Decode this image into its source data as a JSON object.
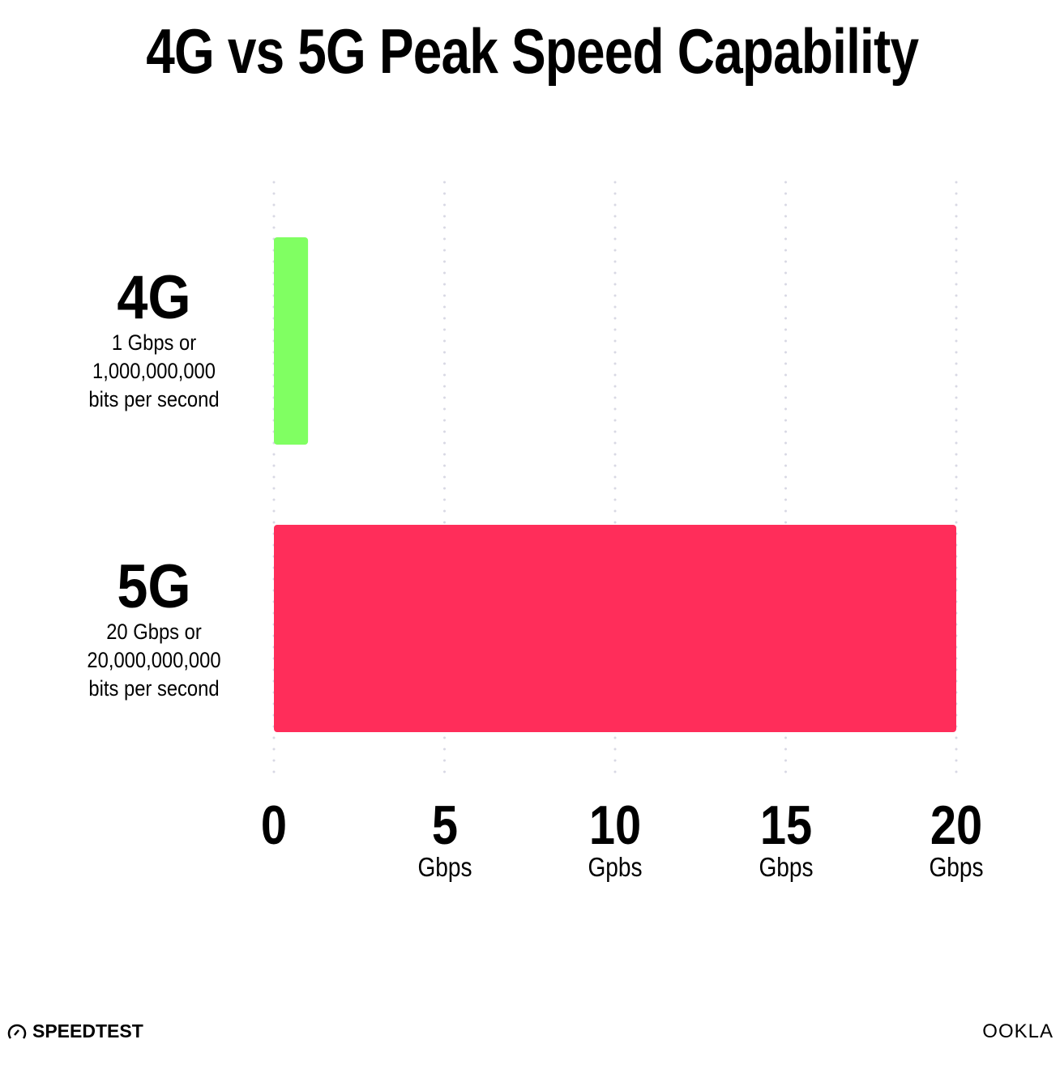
{
  "chart_data": {
    "type": "bar",
    "orientation": "horizontal",
    "title": "4G vs 5G Peak Speed Capability",
    "categories": [
      "4G",
      "5G"
    ],
    "category_descriptions": [
      [
        "1 Gbps or",
        "1,000,000,000",
        "bits per second"
      ],
      [
        "20 Gbps or",
        "20,000,000,000",
        "bits per second"
      ]
    ],
    "values": [
      1,
      20
    ],
    "colors": [
      "#80ff62",
      "#ff2d5a"
    ],
    "xlim": [
      0,
      20
    ],
    "x_ticks": [
      {
        "value": 0,
        "label": "0",
        "unit": ""
      },
      {
        "value": 5,
        "label": "5",
        "unit": "Gbps"
      },
      {
        "value": 10,
        "label": "10",
        "unit": "Gpbs"
      },
      {
        "value": 15,
        "label": "15",
        "unit": "Gbps"
      },
      {
        "value": 20,
        "label": "20",
        "unit": "Gbps"
      }
    ],
    "grid": "vertical dotted"
  },
  "logos": {
    "left": "SPEEDTEST",
    "right": "OOKLA"
  }
}
